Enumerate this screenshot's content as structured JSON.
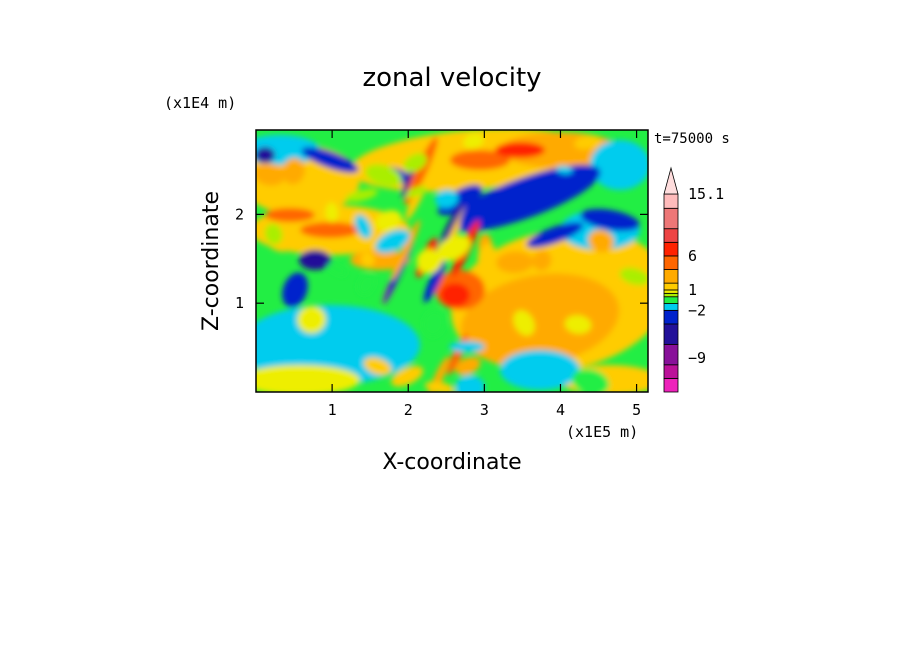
{
  "chart_data": {
    "type": "heatmap",
    "title": "zonal velocity",
    "xlabel": "X-coordinate",
    "ylabel": "Z-coordinate",
    "x_multiplier": "(x1E5 m)",
    "y_multiplier": "(x1E4 m)",
    "time_label": "t=75000 s",
    "xlim": [
      0,
      5.15
    ],
    "ylim": [
      0,
      2.95
    ],
    "x_ticks": [
      "1",
      "2",
      "3",
      "4",
      "5"
    ],
    "x_tick_values": [
      1,
      2,
      3,
      4,
      5
    ],
    "y_ticks": [
      "1",
      "2"
    ],
    "y_tick_values": [
      1,
      2
    ],
    "colorbar": {
      "min": -14,
      "max": 15.1,
      "labels": [
        "15.1",
        "6",
        "1",
        "−2",
        "−9"
      ],
      "label_values": [
        15.1,
        6,
        1,
        -2,
        -9
      ],
      "levels": [
        {
          "value": -14,
          "color": "#ee22bb"
        },
        {
          "value": -12,
          "color": "#bb1199"
        },
        {
          "value": -10,
          "color": "#881199"
        },
        {
          "value": -7,
          "color": "#221199"
        },
        {
          "value": -4,
          "color": "#0022cc"
        },
        {
          "value": -2,
          "color": "#00ccee"
        },
        {
          "value": -1,
          "color": "#22ee44"
        },
        {
          "value": 0,
          "color": "#aaee00"
        },
        {
          "value": 0.5,
          "color": "#eeee00"
        },
        {
          "value": 1,
          "color": "#ffcc00"
        },
        {
          "value": 2,
          "color": "#ffaa00"
        },
        {
          "value": 4,
          "color": "#ff6600"
        },
        {
          "value": 6,
          "color": "#ff2200"
        },
        {
          "value": 8,
          "color": "#ee4444"
        },
        {
          "value": 10,
          "color": "#ee7777"
        },
        {
          "value": 13,
          "color": "#ffbbbb"
        },
        {
          "value": 15.1,
          "color": "#ffdddd"
        }
      ]
    }
  }
}
